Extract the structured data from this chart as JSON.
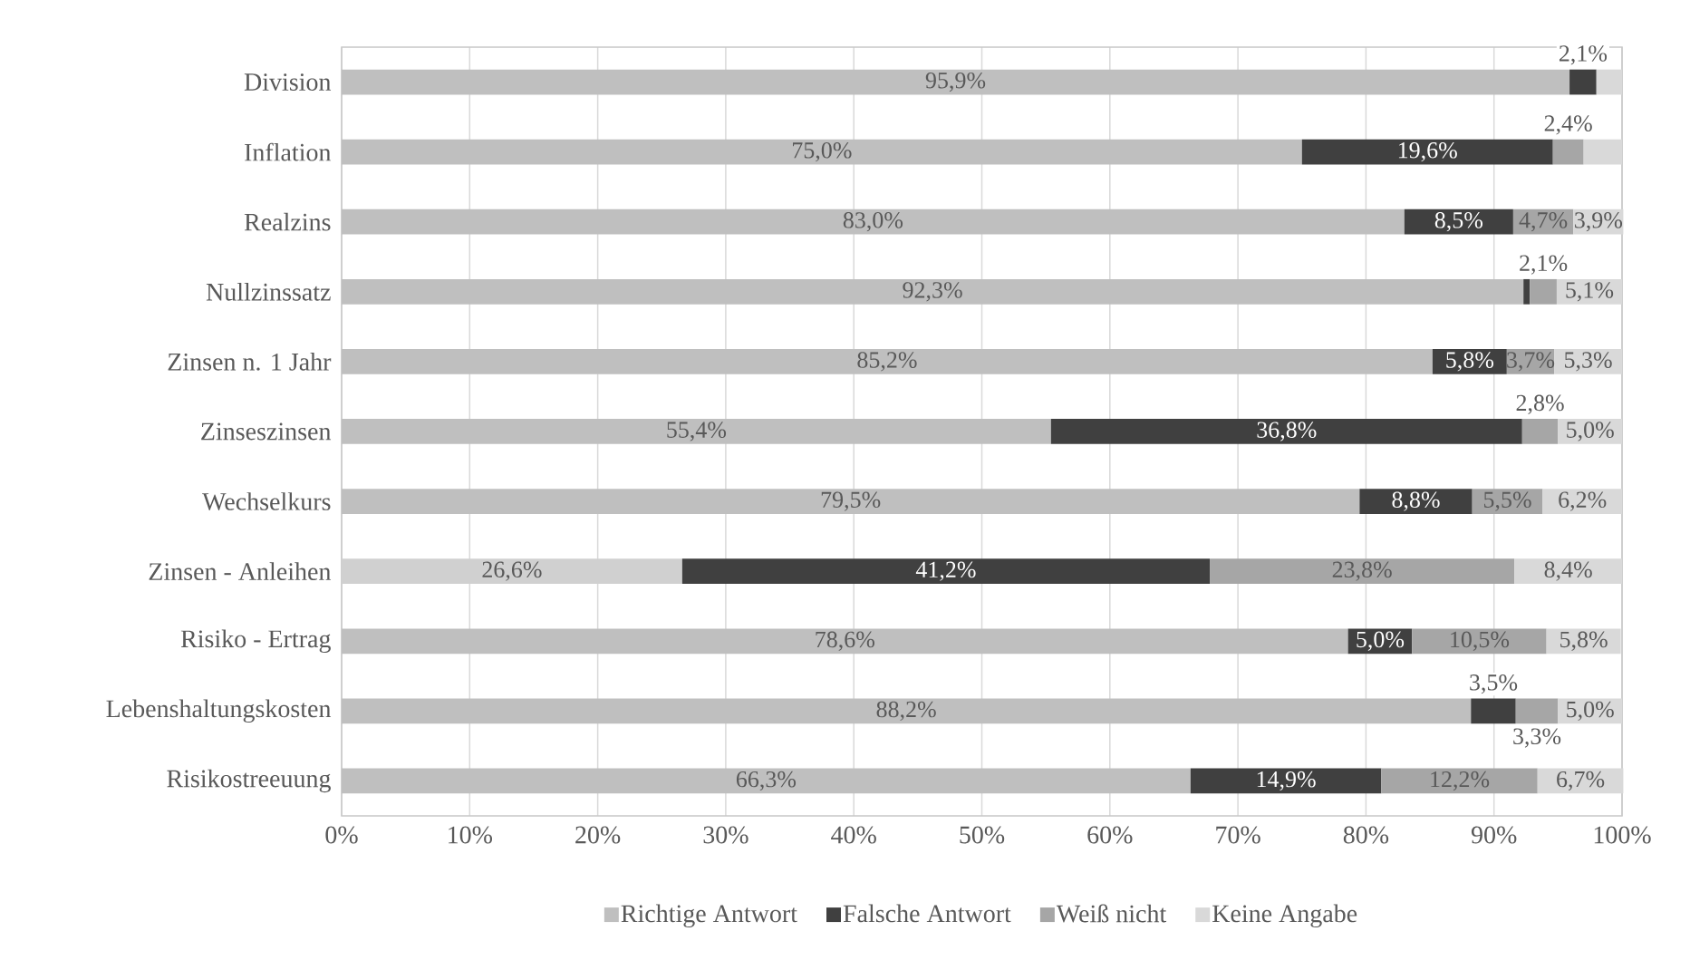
{
  "chart_data": {
    "type": "bar",
    "orientation": "horizontal",
    "stacked": true,
    "categories": [
      "Division",
      "Inflation",
      "Realzins",
      "Nullzinssatz",
      "Zinsen n. 1 Jahr",
      "Zinseszinsen",
      "Wechselkurs",
      "Zinsen - Anleihen",
      "Risiko - Ertrag",
      "Lebenshaltungskosten",
      "Risikostreeuung"
    ],
    "series": [
      {
        "name": "Richtige Antwort",
        "color": "#bfbfbf",
        "colors": [
          "#bfbfbf",
          "#bfbfbf",
          "#bfbfbf",
          "#bfbfbf",
          "#bfbfbf",
          "#bfbfbf",
          "#bfbfbf",
          "#d0d0d0",
          "#bfbfbf",
          "#bfbfbf",
          "#bfbfbf"
        ],
        "values": [
          95.9,
          75.0,
          83.0,
          92.3,
          85.2,
          55.4,
          79.5,
          26.6,
          78.6,
          88.2,
          66.3
        ],
        "value_labels": [
          "95,9%",
          "75,0%",
          "83,0%",
          "92,3%",
          "85,2%",
          "55,4%",
          "79,5%",
          "26,6%",
          "78,6%",
          "88,2%",
          "66,3%"
        ]
      },
      {
        "name": "Falsche Antwort",
        "color": "#404040",
        "values": [
          2.1,
          19.6,
          8.5,
          0.5,
          5.8,
          36.8,
          8.8,
          41.2,
          5.0,
          3.5,
          14.9
        ],
        "value_labels": [
          "2,1%",
          "19,6%",
          "8,5%",
          null,
          "5,8%",
          "36,8%",
          "8,8%",
          "41,2%",
          "5,0%",
          "3,5%",
          "14,9%"
        ]
      },
      {
        "name": "Weiß nicht",
        "color": "#a6a6a6",
        "values": [
          null,
          2.4,
          4.7,
          2.1,
          3.7,
          2.8,
          5.5,
          23.8,
          10.5,
          3.3,
          12.2
        ],
        "value_labels": [
          null,
          "2,4%",
          "4,7%",
          "2,1%",
          "3,7%",
          "2,8%",
          "5,5%",
          "23,8%",
          "10,5%",
          "3,3%",
          "12,2%"
        ]
      },
      {
        "name": "Keine Angabe",
        "color": "#d9d9d9",
        "values": [
          2.0,
          3.0,
          3.9,
          5.1,
          5.3,
          5.0,
          6.2,
          8.4,
          5.8,
          5.0,
          6.7
        ],
        "value_labels": [
          null,
          null,
          "3,9%",
          "5,1%",
          "5,3%",
          "5,0%",
          "6,2%",
          "8,4%",
          "5,8%",
          "5,0%",
          "6,7%"
        ]
      }
    ],
    "xlim": [
      0,
      100
    ],
    "xticks": [
      {
        "value": 0,
        "label": "0%"
      },
      {
        "value": 10,
        "label": "10%"
      },
      {
        "value": 20,
        "label": "20%"
      },
      {
        "value": 30,
        "label": "30%"
      },
      {
        "value": 40,
        "label": "40%"
      },
      {
        "value": 50,
        "label": "50%"
      },
      {
        "value": 60,
        "label": "60%"
      },
      {
        "value": 70,
        "label": "70%"
      },
      {
        "value": 80,
        "label": "80%"
      },
      {
        "value": 90,
        "label": "90%"
      },
      {
        "value": 100,
        "label": "100%"
      }
    ],
    "grid": "x",
    "legend": "bottom"
  }
}
